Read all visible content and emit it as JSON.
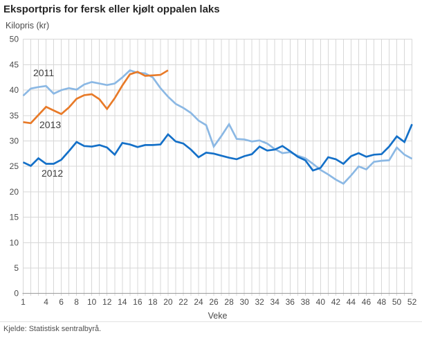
{
  "figure": {
    "title": "Eksportpris for fersk eller kjølt oppalen laks",
    "y_axis_title": "Kilopris (kr)",
    "x_axis_title": "Veke",
    "source": "Kjelde: Statistisk sentralbyrå."
  },
  "colors": {
    "grid": "#d7d7d7",
    "axis": "#9c9c9c",
    "tick_text": "#4a4a4a",
    "series_2011": "#8bb8e4",
    "series_2012": "#1470c8",
    "series_2013": "#e87a28"
  },
  "chart_data": {
    "type": "line",
    "title": "Eksportpris for fersk eller kjølt oppalen laks",
    "xlabel": "Veke",
    "ylabel": "Kilopris (kr)",
    "x_range": [
      1,
      52
    ],
    "y_range": [
      0,
      50
    ],
    "grid": true,
    "x_ticks": [
      1,
      4,
      6,
      8,
      10,
      12,
      14,
      16,
      18,
      20,
      22,
      24,
      26,
      28,
      30,
      32,
      34,
      36,
      38,
      40,
      42,
      44,
      46,
      48,
      50,
      52
    ],
    "y_ticks": [
      0,
      5,
      10,
      15,
      20,
      25,
      30,
      35,
      40,
      45,
      50
    ],
    "legend_position": "inline-labels",
    "series": [
      {
        "name": "2011",
        "color": "#8bb8e4",
        "x_start": 1,
        "values": [
          38.9,
          40.3,
          40.6,
          40.8,
          39.3,
          40.0,
          40.4,
          40.1,
          41.1,
          41.6,
          41.3,
          41.0,
          41.3,
          42.5,
          43.9,
          43.4,
          43.3,
          42.5,
          40.4,
          38.7,
          37.3,
          36.5,
          35.5,
          34.0,
          33.1,
          28.9,
          31.0,
          33.3,
          30.4,
          30.3,
          29.9,
          30.1,
          29.5,
          28.4,
          27.6,
          27.8,
          27.1,
          26.6,
          25.5,
          24.3,
          23.4,
          22.4,
          21.6,
          23.2,
          25.0,
          24.4,
          25.9,
          26.1,
          26.2,
          28.7,
          27.3,
          26.5
        ]
      },
      {
        "name": "2013",
        "color": "#e87a28",
        "x_start": 1,
        "values": [
          33.7,
          33.5,
          35.1,
          36.7,
          36.0,
          35.3,
          36.6,
          38.3,
          39.0,
          39.2,
          38.2,
          36.3,
          38.4,
          40.9,
          43.1,
          43.6,
          42.8,
          42.9,
          43.0,
          43.9
        ]
      },
      {
        "name": "2012",
        "color": "#1470c8",
        "x_start": 1,
        "values": [
          25.8,
          25.1,
          26.6,
          25.5,
          25.5,
          26.3,
          28.0,
          29.8,
          29.0,
          28.9,
          29.2,
          28.7,
          27.3,
          29.6,
          29.3,
          28.8,
          29.2,
          29.2,
          29.3,
          31.3,
          29.9,
          29.5,
          28.3,
          26.8,
          27.7,
          27.5,
          27.1,
          26.7,
          26.4,
          27.0,
          27.4,
          28.9,
          28.1,
          28.3,
          29.0,
          28.0,
          26.9,
          26.2,
          24.2,
          24.7,
          26.8,
          26.4,
          25.5,
          27.0,
          27.6,
          26.9,
          27.3,
          27.4,
          28.9,
          30.9,
          29.8,
          33.3
        ]
      }
    ]
  }
}
